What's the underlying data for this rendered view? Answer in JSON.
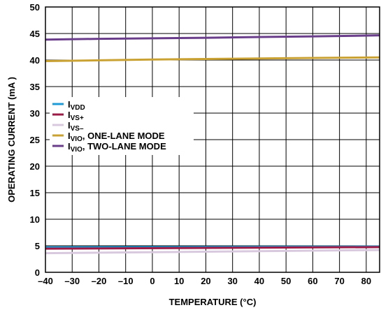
{
  "chart_data": {
    "type": "line",
    "title": "",
    "xlabel": "TEMPERATURE (°C)",
    "ylabel": "OPERATING CURRENT (mA )",
    "xlim": [
      -40,
      85
    ],
    "ylim": [
      0,
      50
    ],
    "xticks": [
      -40,
      -30,
      -20,
      -10,
      0,
      10,
      20,
      30,
      40,
      50,
      60,
      70,
      80
    ],
    "yticks": [
      0,
      5,
      10,
      15,
      20,
      25,
      30,
      35,
      40,
      45,
      50
    ],
    "xtick_labels": [
      "–40",
      "–30",
      "–20",
      "–10",
      "0",
      "10",
      "20",
      "30",
      "40",
      "50",
      "60",
      "70",
      "80"
    ],
    "ytick_labels": [
      "0",
      "5",
      "10",
      "15",
      "20",
      "25",
      "30",
      "35",
      "40",
      "45",
      "50"
    ],
    "grid": true,
    "legend_position": "left-center",
    "series": [
      {
        "name": "I",
        "subscript": "VDD",
        "suffix": "",
        "color": "#1e9bd7",
        "x": [
          -40,
          85
        ],
        "y": [
          4.7,
          4.85
        ]
      },
      {
        "name": "I",
        "subscript": "VS+",
        "suffix": "",
        "color": "#9b1b46",
        "x": [
          -40,
          85
        ],
        "y": [
          4.45,
          4.75
        ]
      },
      {
        "name": "I",
        "subscript": "VS–",
        "suffix": "",
        "color": "#d9c9de",
        "x": [
          -40,
          85
        ],
        "y": [
          3.6,
          4.2
        ]
      },
      {
        "name": "I",
        "subscript": "VIO",
        "suffix": ", ONE-LANE MODE",
        "color": "#c9a233",
        "x": [
          -40,
          -20,
          0,
          20,
          40,
          60,
          85
        ],
        "y": [
          39.8,
          39.95,
          40.1,
          40.2,
          40.3,
          40.4,
          40.5
        ]
      },
      {
        "name": "I",
        "subscript": "VIO",
        "suffix": ", TWO-LANE MODE",
        "color": "#6a3d8a",
        "x": [
          -40,
          -20,
          0,
          20,
          40,
          60,
          85
        ],
        "y": [
          43.85,
          44.0,
          44.1,
          44.2,
          44.35,
          44.45,
          44.65
        ]
      }
    ]
  }
}
